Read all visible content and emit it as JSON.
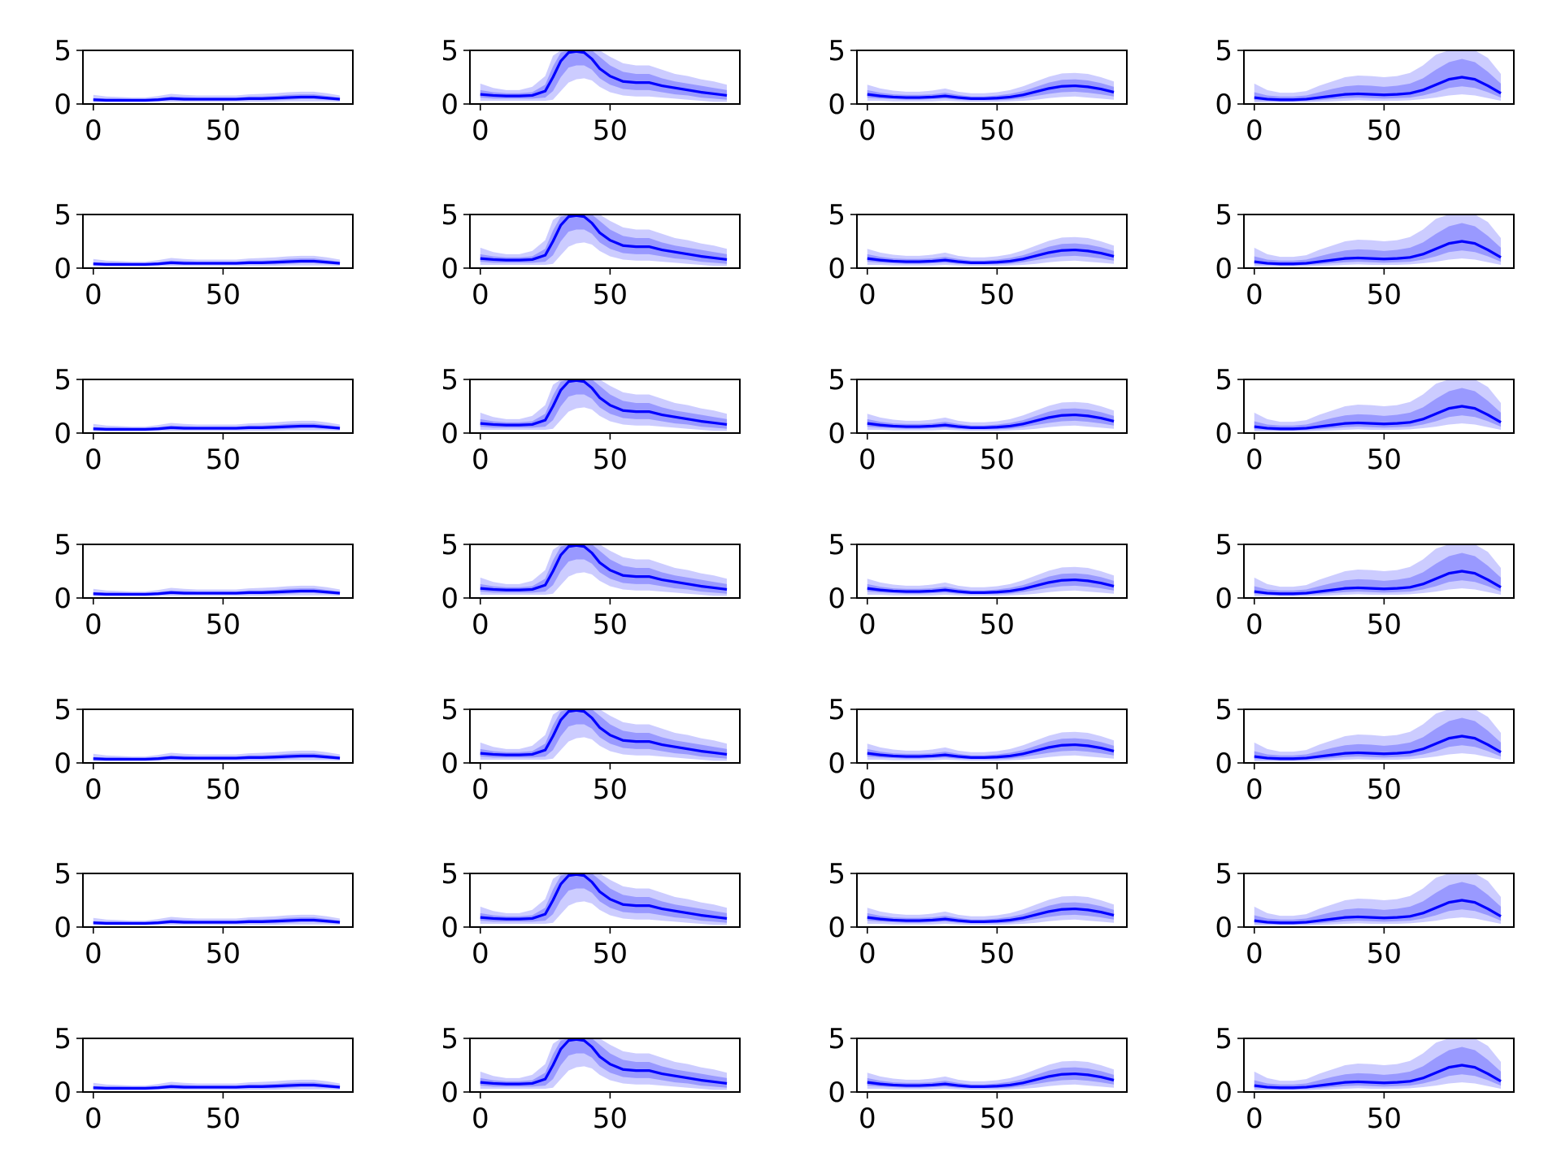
{
  "figure": {
    "layout": "7 rows x 4 columns",
    "colors": {
      "line": "#0000ff",
      "band_outer": "#ccccff",
      "band_inner": "#9999ff",
      "axes": "#000000",
      "background": "#ffffff"
    }
  },
  "chart_data": [
    {
      "column": 1,
      "type": "line",
      "panels": 7,
      "xlim": [
        -4,
        100
      ],
      "ylim": [
        0,
        5
      ],
      "xticks": [
        0,
        50
      ],
      "yticks": [
        0,
        5
      ],
      "grid": false,
      "legend": "none",
      "series": [
        {
          "x": [
            0,
            5,
            10,
            15,
            20,
            25,
            30,
            35,
            40,
            45,
            50,
            55,
            60,
            65,
            70,
            75,
            80,
            85,
            90,
            95
          ],
          "values": [
            0.4,
            0.35,
            0.35,
            0.35,
            0.35,
            0.4,
            0.5,
            0.45,
            0.45,
            0.45,
            0.45,
            0.45,
            0.5,
            0.5,
            0.55,
            0.6,
            0.65,
            0.65,
            0.55,
            0.45
          ],
          "band_inner": [
            [
              0.3,
              0.55
            ],
            [
              0.25,
              0.5
            ],
            [
              0.25,
              0.5
            ],
            [
              0.25,
              0.45
            ],
            [
              0.25,
              0.45
            ],
            [
              0.3,
              0.55
            ],
            [
              0.35,
              0.7
            ],
            [
              0.3,
              0.65
            ],
            [
              0.3,
              0.6
            ],
            [
              0.3,
              0.6
            ],
            [
              0.3,
              0.6
            ],
            [
              0.3,
              0.6
            ],
            [
              0.35,
              0.7
            ],
            [
              0.35,
              0.7
            ],
            [
              0.35,
              0.75
            ],
            [
              0.4,
              0.85
            ],
            [
              0.45,
              0.9
            ],
            [
              0.45,
              0.9
            ],
            [
              0.4,
              0.75
            ],
            [
              0.3,
              0.6
            ]
          ],
          "band_outer": [
            [
              0.15,
              0.85
            ],
            [
              0.15,
              0.7
            ],
            [
              0.15,
              0.65
            ],
            [
              0.15,
              0.6
            ],
            [
              0.15,
              0.6
            ],
            [
              0.2,
              0.75
            ],
            [
              0.2,
              0.95
            ],
            [
              0.2,
              0.85
            ],
            [
              0.2,
              0.8
            ],
            [
              0.2,
              0.8
            ],
            [
              0.2,
              0.8
            ],
            [
              0.2,
              0.8
            ],
            [
              0.2,
              0.9
            ],
            [
              0.2,
              0.95
            ],
            [
              0.2,
              1.0
            ],
            [
              0.25,
              1.1
            ],
            [
              0.25,
              1.15
            ],
            [
              0.25,
              1.15
            ],
            [
              0.25,
              1.0
            ],
            [
              0.2,
              0.8
            ]
          ]
        }
      ]
    },
    {
      "column": 2,
      "type": "line",
      "panels": 7,
      "xlim": [
        -4,
        100
      ],
      "ylim": [
        0,
        5
      ],
      "xticks": [
        0,
        50
      ],
      "yticks": [
        0,
        5
      ],
      "grid": false,
      "legend": "none",
      "series": [
        {
          "x": [
            0,
            5,
            10,
            15,
            20,
            25,
            28,
            31,
            34,
            37,
            40,
            43,
            46,
            50,
            55,
            60,
            65,
            70,
            75,
            80,
            85,
            90,
            95
          ],
          "values": [
            0.9,
            0.8,
            0.75,
            0.75,
            0.8,
            1.2,
            2.5,
            4.0,
            4.8,
            4.9,
            4.8,
            4.2,
            3.3,
            2.6,
            2.1,
            2.0,
            2.0,
            1.7,
            1.5,
            1.3,
            1.1,
            0.95,
            0.8
          ],
          "band_inner": [
            [
              0.6,
              1.3
            ],
            [
              0.5,
              1.1
            ],
            [
              0.5,
              1.0
            ],
            [
              0.5,
              1.0
            ],
            [
              0.5,
              1.1
            ],
            [
              0.6,
              1.8
            ],
            [
              1.2,
              3.5
            ],
            [
              2.5,
              4.8
            ],
            [
              3.4,
              5.0
            ],
            [
              3.6,
              5.0
            ],
            [
              3.6,
              5.0
            ],
            [
              3.2,
              5.0
            ],
            [
              2.4,
              4.4
            ],
            [
              1.8,
              3.6
            ],
            [
              1.4,
              3.0
            ],
            [
              1.3,
              2.8
            ],
            [
              1.3,
              2.8
            ],
            [
              1.1,
              2.4
            ],
            [
              0.9,
              2.1
            ],
            [
              0.8,
              1.9
            ],
            [
              0.6,
              1.7
            ],
            [
              0.5,
              1.5
            ],
            [
              0.4,
              1.3
            ]
          ],
          "band_outer": [
            [
              0.3,
              1.9
            ],
            [
              0.3,
              1.5
            ],
            [
              0.3,
              1.3
            ],
            [
              0.3,
              1.3
            ],
            [
              0.3,
              1.6
            ],
            [
              0.3,
              2.6
            ],
            [
              0.4,
              4.5
            ],
            [
              1.2,
              5.0
            ],
            [
              2.0,
              5.0
            ],
            [
              2.3,
              5.0
            ],
            [
              2.4,
              5.0
            ],
            [
              2.2,
              5.0
            ],
            [
              1.6,
              5.0
            ],
            [
              1.1,
              4.4
            ],
            [
              0.8,
              3.8
            ],
            [
              0.7,
              3.6
            ],
            [
              0.7,
              3.6
            ],
            [
              0.6,
              3.2
            ],
            [
              0.5,
              2.8
            ],
            [
              0.4,
              2.6
            ],
            [
              0.3,
              2.3
            ],
            [
              0.2,
              2.1
            ],
            [
              0.2,
              1.8
            ]
          ]
        }
      ]
    },
    {
      "column": 3,
      "type": "line",
      "panels": 7,
      "xlim": [
        -4,
        100
      ],
      "ylim": [
        0,
        5
      ],
      "xticks": [
        0,
        50
      ],
      "yticks": [
        0,
        5
      ],
      "grid": false,
      "legend": "none",
      "series": [
        {
          "x": [
            0,
            5,
            10,
            15,
            20,
            25,
            30,
            35,
            40,
            45,
            50,
            55,
            60,
            65,
            70,
            75,
            80,
            85,
            90,
            95
          ],
          "values": [
            0.9,
            0.75,
            0.65,
            0.6,
            0.6,
            0.65,
            0.75,
            0.6,
            0.5,
            0.5,
            0.55,
            0.65,
            0.85,
            1.15,
            1.45,
            1.65,
            1.7,
            1.6,
            1.4,
            1.1
          ],
          "band_inner": [
            [
              0.6,
              1.3
            ],
            [
              0.5,
              1.05
            ],
            [
              0.45,
              0.9
            ],
            [
              0.4,
              0.85
            ],
            [
              0.4,
              0.85
            ],
            [
              0.45,
              0.9
            ],
            [
              0.5,
              1.05
            ],
            [
              0.4,
              0.85
            ],
            [
              0.35,
              0.7
            ],
            [
              0.35,
              0.7
            ],
            [
              0.35,
              0.8
            ],
            [
              0.4,
              0.95
            ],
            [
              0.55,
              1.2
            ],
            [
              0.75,
              1.6
            ],
            [
              0.95,
              2.0
            ],
            [
              1.1,
              2.25
            ],
            [
              1.15,
              2.3
            ],
            [
              1.05,
              2.2
            ],
            [
              0.9,
              1.95
            ],
            [
              0.7,
              1.6
            ]
          ],
          "band_outer": [
            [
              0.3,
              1.8
            ],
            [
              0.3,
              1.45
            ],
            [
              0.25,
              1.25
            ],
            [
              0.25,
              1.15
            ],
            [
              0.25,
              1.15
            ],
            [
              0.25,
              1.25
            ],
            [
              0.3,
              1.45
            ],
            [
              0.25,
              1.15
            ],
            [
              0.2,
              1.0
            ],
            [
              0.2,
              1.0
            ],
            [
              0.2,
              1.1
            ],
            [
              0.25,
              1.3
            ],
            [
              0.3,
              1.65
            ],
            [
              0.4,
              2.1
            ],
            [
              0.55,
              2.55
            ],
            [
              0.65,
              2.85
            ],
            [
              0.7,
              2.9
            ],
            [
              0.6,
              2.8
            ],
            [
              0.5,
              2.5
            ],
            [
              0.4,
              2.1
            ]
          ]
        }
      ]
    },
    {
      "column": 4,
      "type": "line",
      "panels": 7,
      "xlim": [
        -4,
        100
      ],
      "ylim": [
        0,
        5
      ],
      "xticks": [
        0,
        50
      ],
      "yticks": [
        0,
        5
      ],
      "grid": false,
      "legend": "none",
      "series": [
        {
          "x": [
            0,
            5,
            10,
            15,
            20,
            25,
            30,
            35,
            40,
            45,
            50,
            55,
            60,
            65,
            70,
            75,
            80,
            85,
            90,
            95
          ],
          "values": [
            0.6,
            0.45,
            0.4,
            0.4,
            0.45,
            0.6,
            0.75,
            0.9,
            0.95,
            0.9,
            0.85,
            0.9,
            1.0,
            1.3,
            1.8,
            2.3,
            2.5,
            2.3,
            1.7,
            1.0
          ],
          "band_inner": [
            [
              0.35,
              1.1
            ],
            [
              0.3,
              0.8
            ],
            [
              0.25,
              0.7
            ],
            [
              0.25,
              0.7
            ],
            [
              0.3,
              0.8
            ],
            [
              0.35,
              1.1
            ],
            [
              0.45,
              1.4
            ],
            [
              0.55,
              1.65
            ],
            [
              0.6,
              1.75
            ],
            [
              0.55,
              1.7
            ],
            [
              0.5,
              1.6
            ],
            [
              0.55,
              1.7
            ],
            [
              0.6,
              1.9
            ],
            [
              0.8,
              2.4
            ],
            [
              1.1,
              3.2
            ],
            [
              1.5,
              3.9
            ],
            [
              1.65,
              4.2
            ],
            [
              1.5,
              3.9
            ],
            [
              1.1,
              3.0
            ],
            [
              0.6,
              1.9
            ]
          ],
          "band_outer": [
            [
              0.15,
              1.9
            ],
            [
              0.15,
              1.3
            ],
            [
              0.15,
              1.05
            ],
            [
              0.15,
              1.05
            ],
            [
              0.15,
              1.2
            ],
            [
              0.2,
              1.7
            ],
            [
              0.25,
              2.1
            ],
            [
              0.3,
              2.5
            ],
            [
              0.35,
              2.65
            ],
            [
              0.3,
              2.6
            ],
            [
              0.3,
              2.5
            ],
            [
              0.3,
              2.6
            ],
            [
              0.35,
              2.9
            ],
            [
              0.45,
              3.6
            ],
            [
              0.6,
              4.6
            ],
            [
              0.8,
              5.0
            ],
            [
              0.9,
              5.0
            ],
            [
              0.8,
              5.0
            ],
            [
              0.55,
              4.3
            ],
            [
              0.3,
              2.8
            ]
          ]
        }
      ]
    }
  ]
}
